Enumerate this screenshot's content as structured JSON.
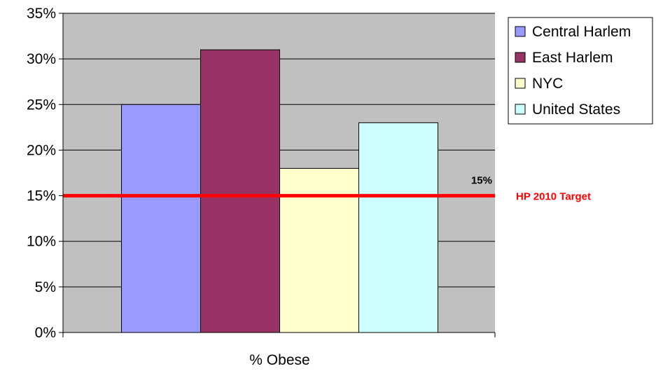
{
  "chart_data": {
    "type": "bar",
    "categories": [
      "% Obese"
    ],
    "series": [
      {
        "name": "Central Harlem",
        "values": [
          25
        ],
        "color": "#9999ff"
      },
      {
        "name": "East Harlem",
        "values": [
          31
        ],
        "color": "#993366"
      },
      {
        "name": "NYC",
        "values": [
          18
        ],
        "color": "#ffffcc"
      },
      {
        "name": "United States",
        "values": [
          23
        ],
        "color": "#ccffff"
      }
    ],
    "ylim": [
      0,
      35
    ],
    "yticks": [
      0,
      5,
      10,
      15,
      20,
      25,
      30,
      35
    ],
    "ytick_labels": [
      "0%",
      "5%",
      "10%",
      "15%",
      "20%",
      "25%",
      "30%",
      "35%"
    ],
    "title": "",
    "xlabel": "",
    "ylabel": "",
    "grid": true,
    "plot_background": "#c0c0c0",
    "legend_position": "top-right",
    "reference_line": {
      "value": 15,
      "value_label": "15%",
      "label": "HP 2010 Target",
      "color": "#ff0000"
    }
  }
}
